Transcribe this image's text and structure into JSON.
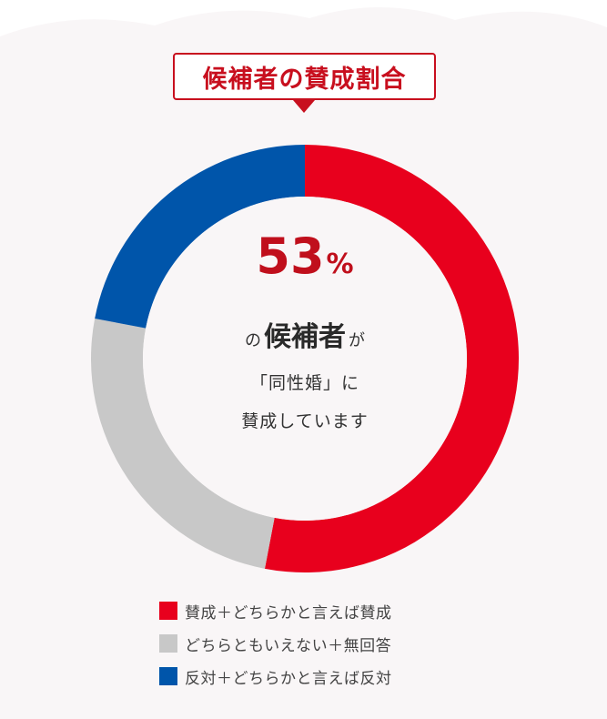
{
  "title": "候補者の賛成割合",
  "center": {
    "percent_value": "53",
    "percent_sign": "%",
    "prefix": "の",
    "subject": "候補者",
    "suffix": "が",
    "line2": "「同性婚」に",
    "line3": "賛成しています"
  },
  "colors": {
    "accent": "#c80f1e",
    "background_panel": "#f9f6f7"
  },
  "chart_data": {
    "type": "pie",
    "subtype": "donut",
    "title": "候補者の賛成割合",
    "start": "top",
    "direction": "clockwise",
    "series": [
      {
        "name": "賛成＋どちらかと言えば賛成",
        "value": 53,
        "color": "#e8001d"
      },
      {
        "name": "どちらともいえない＋無回答",
        "value": 25,
        "color": "#c8c8c8"
      },
      {
        "name": "反対＋どちらかと言えば反対",
        "value": 22,
        "color": "#0055aa"
      }
    ]
  },
  "legend": [
    {
      "label": "賛成＋どちらかと言えば賛成",
      "color": "#e8001d"
    },
    {
      "label": "どちらともいえない＋無回答",
      "color": "#c8c8c8"
    },
    {
      "label": "反対＋どちらかと言えば反対",
      "color": "#0055aa"
    }
  ]
}
